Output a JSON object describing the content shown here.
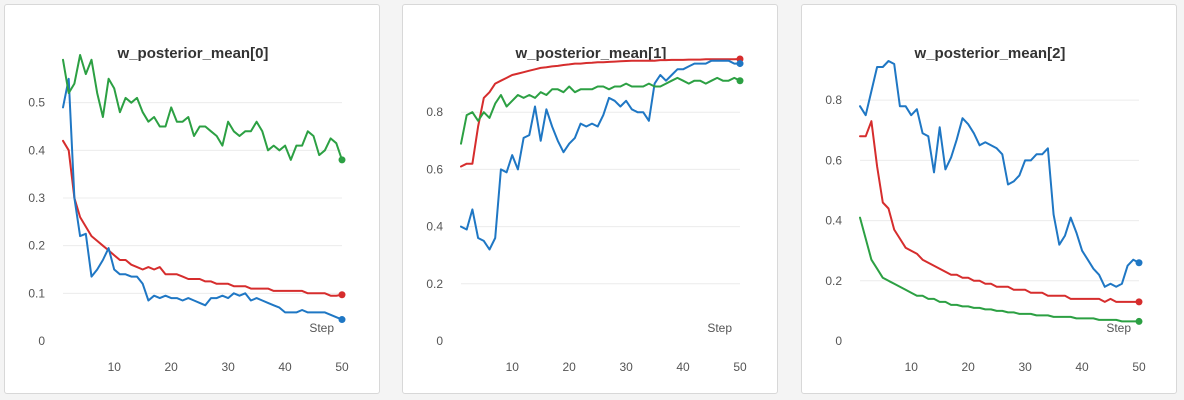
{
  "colors": {
    "red": "#d62d2d",
    "blue": "#1f77c4",
    "green": "#2ca043"
  },
  "chart_data": [
    {
      "type": "line",
      "title": "w_posterior_mean[0]",
      "xlabel": "Step",
      "xlim": [
        1,
        50
      ],
      "ylim": [
        0,
        0.6
      ],
      "xticks": [
        10,
        20,
        30,
        40,
        50
      ],
      "yticks": [
        0,
        0.1,
        0.2,
        0.3,
        0.4,
        0.5
      ],
      "grid": true,
      "series": [
        {
          "color": "red",
          "x": [
            1,
            2,
            3,
            4,
            5,
            6,
            7,
            8,
            9,
            10,
            11,
            12,
            13,
            14,
            15,
            16,
            17,
            18,
            19,
            20,
            21,
            22,
            23,
            24,
            25,
            26,
            27,
            28,
            29,
            30,
            31,
            32,
            33,
            34,
            35,
            36,
            37,
            38,
            39,
            40,
            41,
            42,
            43,
            44,
            45,
            46,
            47,
            48,
            49,
            50
          ],
          "values": [
            0.42,
            0.4,
            0.3,
            0.26,
            0.24,
            0.22,
            0.21,
            0.2,
            0.19,
            0.18,
            0.17,
            0.17,
            0.16,
            0.155,
            0.15,
            0.155,
            0.15,
            0.155,
            0.14,
            0.14,
            0.14,
            0.135,
            0.13,
            0.13,
            0.13,
            0.125,
            0.125,
            0.12,
            0.12,
            0.12,
            0.115,
            0.115,
            0.115,
            0.11,
            0.11,
            0.11,
            0.11,
            0.105,
            0.105,
            0.105,
            0.105,
            0.105,
            0.105,
            0.1,
            0.1,
            0.1,
            0.1,
            0.095,
            0.095,
            0.097
          ]
        },
        {
          "color": "blue",
          "x": [
            1,
            2,
            3,
            4,
            5,
            6,
            7,
            8,
            9,
            10,
            11,
            12,
            13,
            14,
            15,
            16,
            17,
            18,
            19,
            20,
            21,
            22,
            23,
            24,
            25,
            26,
            27,
            28,
            29,
            30,
            31,
            32,
            33,
            34,
            35,
            36,
            37,
            38,
            39,
            40,
            41,
            42,
            43,
            44,
            45,
            46,
            47,
            48,
            49,
            50
          ],
          "values": [
            0.49,
            0.55,
            0.3,
            0.22,
            0.225,
            0.135,
            0.15,
            0.17,
            0.195,
            0.15,
            0.14,
            0.14,
            0.135,
            0.135,
            0.12,
            0.085,
            0.095,
            0.09,
            0.095,
            0.09,
            0.09,
            0.085,
            0.09,
            0.085,
            0.08,
            0.075,
            0.09,
            0.09,
            0.095,
            0.09,
            0.1,
            0.095,
            0.1,
            0.085,
            0.09,
            0.085,
            0.08,
            0.075,
            0.07,
            0.06,
            0.06,
            0.06,
            0.065,
            0.06,
            0.06,
            0.06,
            0.06,
            0.055,
            0.05,
            0.045
          ]
        },
        {
          "color": "green",
          "x": [
            1,
            2,
            3,
            4,
            5,
            6,
            7,
            8,
            9,
            10,
            11,
            12,
            13,
            14,
            15,
            16,
            17,
            18,
            19,
            20,
            21,
            22,
            23,
            24,
            25,
            26,
            27,
            28,
            29,
            30,
            31,
            32,
            33,
            34,
            35,
            36,
            37,
            38,
            39,
            40,
            41,
            42,
            43,
            44,
            45,
            46,
            47,
            48,
            49,
            50
          ],
          "values": [
            0.59,
            0.52,
            0.54,
            0.6,
            0.56,
            0.59,
            0.52,
            0.47,
            0.55,
            0.53,
            0.48,
            0.51,
            0.5,
            0.51,
            0.48,
            0.46,
            0.47,
            0.45,
            0.45,
            0.49,
            0.46,
            0.46,
            0.47,
            0.43,
            0.45,
            0.45,
            0.44,
            0.43,
            0.41,
            0.46,
            0.44,
            0.43,
            0.44,
            0.44,
            0.46,
            0.44,
            0.4,
            0.41,
            0.4,
            0.41,
            0.38,
            0.41,
            0.41,
            0.44,
            0.43,
            0.39,
            0.4,
            0.425,
            0.415,
            0.38
          ]
        }
      ]
    },
    {
      "type": "line",
      "title": "w_posterior_mean[1]",
      "xlabel": "Step",
      "xlim": [
        1,
        50
      ],
      "ylim": [
        0,
        1.0
      ],
      "xticks": [
        10,
        20,
        30,
        40,
        50
      ],
      "yticks": [
        0,
        0.2,
        0.4,
        0.6,
        0.8
      ],
      "grid": true,
      "series": [
        {
          "color": "red",
          "x": [
            1,
            2,
            3,
            4,
            5,
            6,
            7,
            8,
            9,
            10,
            11,
            12,
            13,
            14,
            15,
            16,
            17,
            18,
            19,
            20,
            21,
            22,
            23,
            24,
            25,
            26,
            27,
            28,
            29,
            30,
            31,
            32,
            33,
            34,
            35,
            36,
            37,
            38,
            39,
            40,
            41,
            42,
            43,
            44,
            45,
            46,
            47,
            48,
            49,
            50
          ],
          "values": [
            0.61,
            0.62,
            0.62,
            0.75,
            0.85,
            0.87,
            0.9,
            0.91,
            0.92,
            0.93,
            0.935,
            0.94,
            0.945,
            0.95,
            0.955,
            0.957,
            0.96,
            0.962,
            0.965,
            0.967,
            0.97,
            0.97,
            0.972,
            0.973,
            0.975,
            0.975,
            0.976,
            0.977,
            0.978,
            0.979,
            0.98,
            0.98,
            0.98,
            0.98,
            0.98,
            0.982,
            0.982,
            0.983,
            0.983,
            0.983,
            0.984,
            0.984,
            0.984,
            0.985,
            0.985,
            0.985,
            0.985,
            0.985,
            0.985,
            0.986
          ]
        },
        {
          "color": "blue",
          "x": [
            1,
            2,
            3,
            4,
            5,
            6,
            7,
            8,
            9,
            10,
            11,
            12,
            13,
            14,
            15,
            16,
            17,
            18,
            19,
            20,
            21,
            22,
            23,
            24,
            25,
            26,
            27,
            28,
            29,
            30,
            31,
            32,
            33,
            34,
            35,
            36,
            37,
            38,
            39,
            40,
            41,
            42,
            43,
            44,
            45,
            46,
            47,
            48,
            49,
            50
          ],
          "values": [
            0.4,
            0.39,
            0.46,
            0.36,
            0.35,
            0.32,
            0.36,
            0.6,
            0.59,
            0.65,
            0.6,
            0.71,
            0.72,
            0.82,
            0.7,
            0.81,
            0.75,
            0.7,
            0.66,
            0.69,
            0.71,
            0.76,
            0.75,
            0.76,
            0.75,
            0.79,
            0.85,
            0.84,
            0.82,
            0.84,
            0.81,
            0.8,
            0.8,
            0.77,
            0.9,
            0.93,
            0.91,
            0.93,
            0.95,
            0.95,
            0.96,
            0.97,
            0.97,
            0.97,
            0.98,
            0.98,
            0.98,
            0.98,
            0.97,
            0.97
          ]
        },
        {
          "color": "green",
          "x": [
            1,
            2,
            3,
            4,
            5,
            6,
            7,
            8,
            9,
            10,
            11,
            12,
            13,
            14,
            15,
            16,
            17,
            18,
            19,
            20,
            21,
            22,
            23,
            24,
            25,
            26,
            27,
            28,
            29,
            30,
            31,
            32,
            33,
            34,
            35,
            36,
            37,
            38,
            39,
            40,
            41,
            42,
            43,
            44,
            45,
            46,
            47,
            48,
            49,
            50
          ],
          "values": [
            0.69,
            0.79,
            0.8,
            0.77,
            0.8,
            0.78,
            0.83,
            0.86,
            0.82,
            0.84,
            0.86,
            0.85,
            0.86,
            0.85,
            0.87,
            0.86,
            0.88,
            0.88,
            0.87,
            0.89,
            0.87,
            0.88,
            0.88,
            0.88,
            0.89,
            0.89,
            0.88,
            0.89,
            0.89,
            0.9,
            0.89,
            0.89,
            0.89,
            0.9,
            0.89,
            0.89,
            0.9,
            0.91,
            0.92,
            0.91,
            0.9,
            0.91,
            0.91,
            0.9,
            0.91,
            0.92,
            0.91,
            0.91,
            0.92,
            0.91
          ]
        }
      ]
    },
    {
      "type": "line",
      "title": "w_posterior_mean[2]",
      "xlabel": "Step",
      "xlim": [
        1,
        50
      ],
      "ylim": [
        0,
        0.95
      ],
      "xticks": [
        10,
        20,
        30,
        40,
        50
      ],
      "yticks": [
        0,
        0.2,
        0.4,
        0.6,
        0.8
      ],
      "grid": true,
      "series": [
        {
          "color": "blue",
          "x": [
            1,
            2,
            3,
            4,
            5,
            6,
            7,
            8,
            9,
            10,
            11,
            12,
            13,
            14,
            15,
            16,
            17,
            18,
            19,
            20,
            21,
            22,
            23,
            24,
            25,
            26,
            27,
            28,
            29,
            30,
            31,
            32,
            33,
            34,
            35,
            36,
            37,
            38,
            39,
            40,
            41,
            42,
            43,
            44,
            45,
            46,
            47,
            48,
            49,
            50
          ],
          "values": [
            0.78,
            0.75,
            0.83,
            0.91,
            0.91,
            0.93,
            0.92,
            0.78,
            0.78,
            0.75,
            0.77,
            0.69,
            0.68,
            0.56,
            0.71,
            0.57,
            0.61,
            0.67,
            0.74,
            0.72,
            0.69,
            0.65,
            0.66,
            0.65,
            0.64,
            0.62,
            0.52,
            0.53,
            0.55,
            0.6,
            0.6,
            0.62,
            0.62,
            0.64,
            0.42,
            0.32,
            0.35,
            0.41,
            0.36,
            0.3,
            0.27,
            0.24,
            0.22,
            0.18,
            0.19,
            0.18,
            0.19,
            0.25,
            0.27,
            0.26
          ]
        },
        {
          "color": "red",
          "x": [
            1,
            2,
            3,
            4,
            5,
            6,
            7,
            8,
            9,
            10,
            11,
            12,
            13,
            14,
            15,
            16,
            17,
            18,
            19,
            20,
            21,
            22,
            23,
            24,
            25,
            26,
            27,
            28,
            29,
            30,
            31,
            32,
            33,
            34,
            35,
            36,
            37,
            38,
            39,
            40,
            41,
            42,
            43,
            44,
            45,
            46,
            47,
            48,
            49,
            50
          ],
          "values": [
            0.68,
            0.68,
            0.73,
            0.58,
            0.46,
            0.44,
            0.37,
            0.34,
            0.31,
            0.3,
            0.29,
            0.27,
            0.26,
            0.25,
            0.24,
            0.23,
            0.22,
            0.22,
            0.21,
            0.21,
            0.2,
            0.2,
            0.19,
            0.19,
            0.18,
            0.18,
            0.18,
            0.17,
            0.17,
            0.17,
            0.16,
            0.16,
            0.16,
            0.15,
            0.15,
            0.15,
            0.15,
            0.14,
            0.14,
            0.14,
            0.14,
            0.14,
            0.14,
            0.13,
            0.14,
            0.13,
            0.13,
            0.13,
            0.13,
            0.13
          ]
        },
        {
          "color": "green",
          "x": [
            1,
            2,
            3,
            4,
            5,
            6,
            7,
            8,
            9,
            10,
            11,
            12,
            13,
            14,
            15,
            16,
            17,
            18,
            19,
            20,
            21,
            22,
            23,
            24,
            25,
            26,
            27,
            28,
            29,
            30,
            31,
            32,
            33,
            34,
            35,
            36,
            37,
            38,
            39,
            40,
            41,
            42,
            43,
            44,
            45,
            46,
            47,
            48,
            49,
            50
          ],
          "values": [
            0.41,
            0.34,
            0.27,
            0.24,
            0.21,
            0.2,
            0.19,
            0.18,
            0.17,
            0.16,
            0.15,
            0.15,
            0.14,
            0.14,
            0.13,
            0.13,
            0.12,
            0.12,
            0.115,
            0.115,
            0.11,
            0.11,
            0.105,
            0.105,
            0.1,
            0.1,
            0.095,
            0.095,
            0.09,
            0.09,
            0.09,
            0.085,
            0.085,
            0.085,
            0.08,
            0.08,
            0.08,
            0.08,
            0.075,
            0.075,
            0.075,
            0.075,
            0.07,
            0.07,
            0.07,
            0.07,
            0.065,
            0.065,
            0.065,
            0.065
          ]
        }
      ]
    }
  ]
}
